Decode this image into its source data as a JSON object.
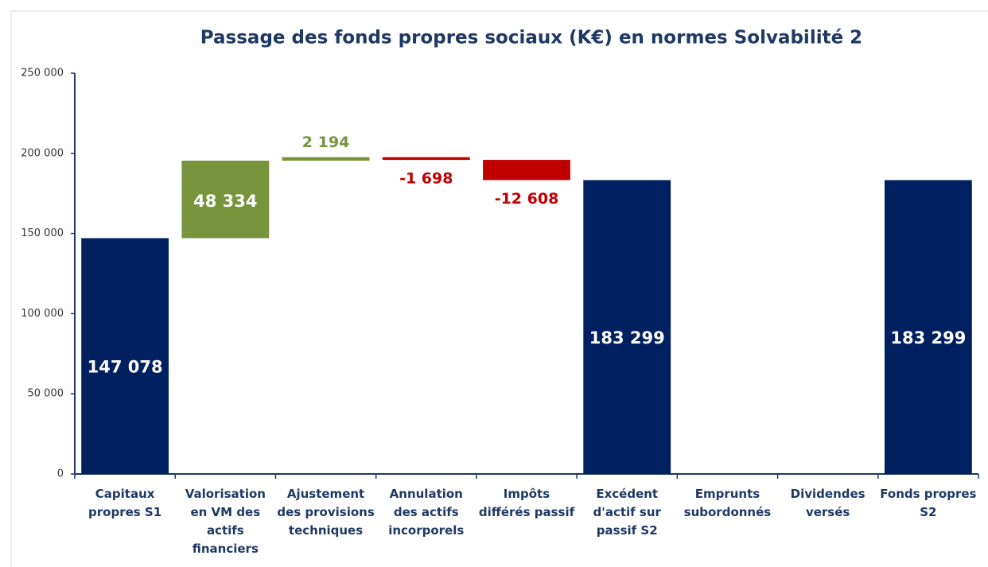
{
  "chart_data": {
    "type": "waterfall",
    "title": "Passage des fonds propres sociaux (K€) en normes Solvabilité 2",
    "categories": [
      "Capitaux propres S1",
      "Valorisation en VM des actifs financiers",
      "Ajustement des provisions techniques",
      "Annulation des actifs incorporels",
      "Impôts différés passif",
      "Excédent d'actif sur passif S2",
      "Emprunts subordonnés",
      "Dividendes versés",
      "Fonds propres S2"
    ],
    "values": [
      147078,
      48334,
      2194,
      -1698,
      -12608,
      183299,
      null,
      null,
      183299
    ],
    "value_labels": [
      "147 078",
      "48 334",
      "2 194",
      "-1 698",
      "-12 608",
      "183 299",
      null,
      null,
      "183 299"
    ],
    "measure": [
      "absolute",
      "relative",
      "relative",
      "relative",
      "relative",
      "absolute",
      "relative",
      "relative",
      "absolute"
    ],
    "colors": {
      "absolute": "#002060",
      "increase": "#77933c",
      "decrease": "#c00000"
    },
    "ylim": [
      0,
      250000
    ],
    "yticks": [
      0,
      {
        "value": 50000,
        "label": "50 000"
      },
      {
        "value": 100000,
        "label": "100 000"
      },
      {
        "value": 150000,
        "label": "150 000"
      },
      {
        "value": 200000,
        "label": "200 000"
      },
      {
        "value": 250000,
        "label": "250 000"
      }
    ],
    "grid": false
  }
}
